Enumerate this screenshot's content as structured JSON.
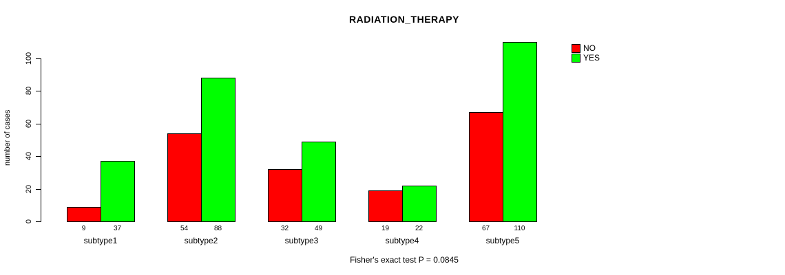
{
  "chart_data": {
    "type": "bar",
    "title": "RADIATION_THERAPY",
    "ylabel": "number of cases",
    "xlabel": "",
    "categories": [
      "subtype1",
      "subtype2",
      "subtype3",
      "subtype4",
      "subtype5"
    ],
    "series": [
      {
        "name": "NO",
        "color": "#ff0000",
        "values": [
          9,
          54,
          32,
          19,
          67
        ]
      },
      {
        "name": "YES",
        "color": "#00ff00",
        "values": [
          37,
          88,
          49,
          22,
          110
        ]
      }
    ],
    "yticks": [
      0,
      20,
      40,
      60,
      80,
      100
    ],
    "ylim": [
      0,
      110
    ],
    "bar_value_labels": [
      [
        "9",
        "37"
      ],
      [
        "54",
        "88"
      ],
      [
        "32",
        "49"
      ],
      [
        "19",
        "22"
      ],
      [
        "67",
        "110"
      ]
    ],
    "legend_position": "top-right",
    "grid": false,
    "bar_border_color": "#000000",
    "footer": "Fisher's exact test P = 0.0845"
  }
}
